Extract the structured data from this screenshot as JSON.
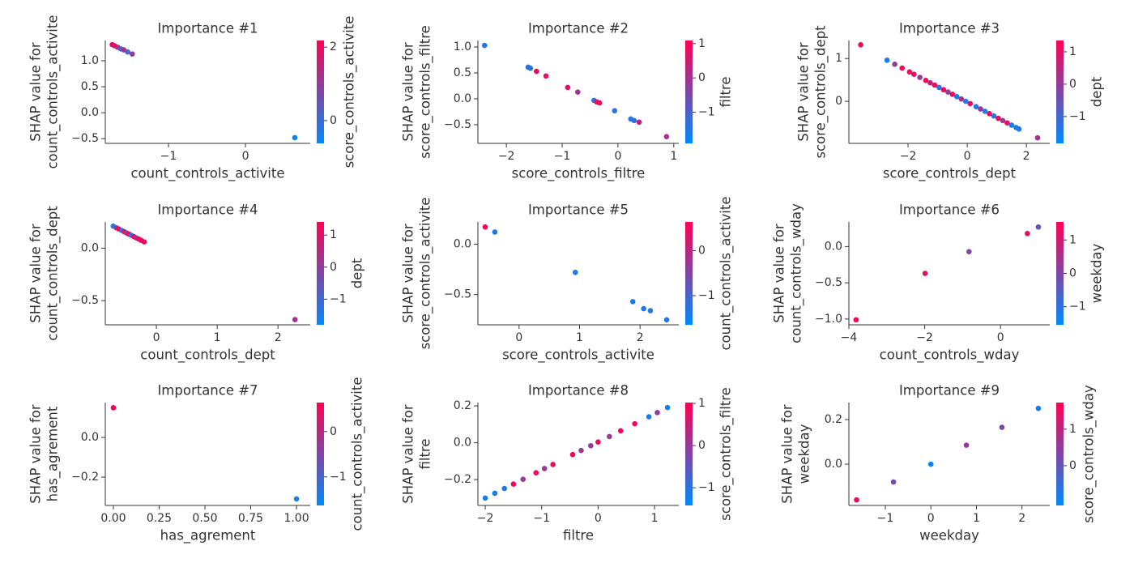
{
  "chart_data": [
    {
      "type": "scatter",
      "title": "Importance #1",
      "xlabel": "count_controls_activite",
      "ylabel": [
        "SHAP value for",
        "count_controls_activite"
      ],
      "colorbar_label": "score_controls_activite",
      "cmap": [
        "#008afb",
        "#ff0052"
      ],
      "xlim": [
        -1.82,
        0.84
      ],
      "xticks": [
        {
          "value": -1,
          "label": "−1"
        },
        0
      ],
      "ylim": [
        -0.59,
        1.39
      ],
      "yticks": [
        {
          "value": -0.5,
          "label": "−0.5"
        },
        {
          "value": 0,
          "label": "0.0"
        },
        0.5,
        {
          "value": 1,
          "label": "1.0"
        }
      ],
      "clim": [
        -0.62,
        2.18
      ],
      "cticks": [
        0,
        2
      ],
      "x": [
        -1.73,
        -1.7,
        -1.66,
        -1.62,
        -1.58,
        -1.53,
        -1.47,
        0.64
      ],
      "values": [
        1.31,
        1.29,
        1.26,
        1.23,
        1.21,
        1.17,
        1.13,
        -0.48
      ],
      "color_values": [
        2.0,
        1.8,
        1.5,
        0.2,
        1.2,
        0.1,
        1.0,
        -0.5
      ]
    },
    {
      "type": "scatter",
      "title": "Importance #2",
      "xlabel": "score_controls_filtre",
      "ylabel": [
        "SHAP value for",
        "score_controls_filtre"
      ],
      "colorbar_label": "filtre",
      "cmap": [
        "#008afb",
        "#ff0052"
      ],
      "xlim": [
        -2.51,
        1.09
      ],
      "xticks": [
        {
          "value": -2,
          "label": "−2"
        },
        {
          "value": -1,
          "label": "−1"
        },
        0,
        1
      ],
      "ylim": [
        -0.86,
        1.125
      ],
      "yticks": [
        {
          "value": -0.5,
          "label": "−0.5"
        },
        {
          "value": 0,
          "label": "0.0"
        },
        0.5,
        {
          "value": 1,
          "label": "1.0"
        }
      ],
      "clim": [
        -1.91,
        1.09
      ],
      "cticks": [
        {
          "value": -1,
          "label": "−1"
        },
        0,
        1
      ],
      "x": [
        -2.39,
        -1.61,
        -1.57,
        -1.46,
        -1.29,
        -0.9,
        -0.72,
        -0.43,
        -0.38,
        -0.33,
        -0.06,
        0.23,
        0.29,
        0.38,
        0.87
      ],
      "values": [
        1.03,
        0.61,
        0.59,
        0.53,
        0.44,
        0.22,
        0.13,
        -0.03,
        -0.06,
        -0.08,
        -0.23,
        -0.39,
        -0.42,
        -0.45,
        -0.73
      ],
      "color_values": [
        -1.5,
        -1.5,
        -1.4,
        0.9,
        0.8,
        0.8,
        0.0,
        -1.5,
        0.9,
        0.8,
        -1.4,
        -1.5,
        -1.3,
        0.3,
        0.1
      ]
    },
    {
      "type": "scatter",
      "title": "Importance #3",
      "xlabel": "score_controls_dept",
      "ylabel": [
        "SHAP value for",
        "score_controls_dept"
      ],
      "colorbar_label": "dept",
      "cmap": [
        "#008afb",
        "#ff0052"
      ],
      "xlim": [
        -4.0,
        2.79
      ],
      "xticks": [
        {
          "value": -2,
          "label": "−2"
        },
        0,
        2
      ],
      "ylim": [
        -0.98,
        1.42
      ],
      "yticks": [
        0,
        1
      ],
      "clim": [
        -1.83,
        1.35
      ],
      "cticks": [
        {
          "value": -1,
          "label": "−1"
        },
        0,
        1
      ],
      "x": [
        -3.6,
        -2.71,
        -2.45,
        -2.2,
        -1.95,
        -1.8,
        -1.6,
        -1.4,
        -1.25,
        -1.1,
        -0.95,
        -0.8,
        -0.65,
        -0.5,
        -0.35,
        -0.2,
        -0.05,
        0.1,
        0.3,
        0.45,
        0.6,
        0.75,
        0.9,
        1.05,
        1.2,
        1.35,
        1.5,
        1.65,
        1.75,
        2.38
      ],
      "values": [
        1.32,
        0.96,
        0.866,
        0.776,
        0.686,
        0.632,
        0.56,
        0.488,
        0.434,
        0.38,
        0.326,
        0.272,
        0.218,
        0.164,
        0.11,
        0.056,
        0.002,
        -0.052,
        -0.124,
        -0.178,
        -0.232,
        -0.286,
        -0.34,
        -0.394,
        -0.448,
        -0.502,
        -0.556,
        -0.61,
        -0.646,
        -0.85
      ],
      "color_values": [
        1.2,
        -1.5,
        0.0,
        1.2,
        1.2,
        1.1,
        0.0,
        1.2,
        0.5,
        1.2,
        -1.4,
        1.1,
        0.0,
        1.2,
        -1.5,
        0.3,
        -1.5,
        1.2,
        -1.4,
        0.0,
        -1.5,
        1.2,
        -1.3,
        1.1,
        0.0,
        1.2,
        -1.5,
        -1.4,
        -1.5,
        0.2
      ]
    },
    {
      "type": "scatter",
      "title": "Importance #4",
      "xlabel": "count_controls_dept",
      "ylabel": [
        "SHAP value for",
        "count_controls_dept"
      ],
      "colorbar_label": "dept",
      "cmap": [
        "#008afb",
        "#ff0052"
      ],
      "xlim": [
        -0.84,
        2.53
      ],
      "xticks": [
        0,
        1,
        2
      ],
      "ylim": [
        -0.73,
        0.25
      ],
      "yticks": [
        {
          "value": -0.5,
          "label": "−0.5"
        },
        {
          "value": 0,
          "label": "0.0"
        }
      ],
      "clim": [
        -1.8,
        1.41
      ],
      "cticks": [
        {
          "value": -1,
          "label": "−1"
        },
        0,
        1
      ],
      "x": [
        -0.71,
        -0.66,
        -0.62,
        -0.57,
        -0.53,
        -0.49,
        -0.45,
        -0.41,
        -0.37,
        -0.33,
        -0.29,
        -0.25,
        -0.2,
        2.28
      ],
      "values": [
        0.21,
        0.195,
        0.184,
        0.169,
        0.157,
        0.145,
        0.134,
        0.122,
        0.11,
        0.098,
        0.087,
        0.075,
        0.06,
        -0.68
      ],
      "color_values": [
        -1.5,
        0.0,
        1.2,
        -1.3,
        1.1,
        0.0,
        1.2,
        -1.4,
        1.2,
        0.2,
        1.1,
        1.2,
        1.0,
        0.3
      ]
    },
    {
      "type": "scatter",
      "title": "Importance #5",
      "xlabel": "score_controls_activite",
      "ylabel": [
        "SHAP value for",
        "score_controls_activite"
      ],
      "colorbar_label": "count_controls_activite",
      "cmap": [
        "#008afb",
        "#ff0052"
      ],
      "xlim": [
        -0.68,
        2.64
      ],
      "xticks": [
        0,
        1,
        2
      ],
      "ylim": [
        -0.8,
        0.22
      ],
      "yticks": [
        {
          "value": -0.5,
          "label": "−0.5"
        },
        {
          "value": 0,
          "label": "0.0"
        }
      ],
      "clim": [
        -1.65,
        0.64
      ],
      "cticks": [
        {
          "value": -1,
          "label": "−1"
        },
        0
      ],
      "x": [
        -0.56,
        -0.4,
        0.93,
        1.88,
        2.06,
        2.17,
        2.44
      ],
      "values": [
        0.17,
        0.12,
        -0.28,
        -0.57,
        -0.64,
        -0.66,
        -0.75
      ],
      "color_values": [
        0.6,
        -1.4,
        -1.4,
        -1.4,
        -1.4,
        -1.4,
        -1.4
      ]
    },
    {
      "type": "scatter",
      "title": "Importance #6",
      "xlabel": "count_controls_wday",
      "ylabel": [
        "SHAP value for",
        "count_controls_wday"
      ],
      "colorbar_label": "weekday",
      "cmap": [
        "#008afb",
        "#ff0052"
      ],
      "xlim": [
        -4.0,
        1.3
      ],
      "xticks": [
        {
          "value": -4,
          "label": "−4"
        },
        {
          "value": -2,
          "label": "−2"
        },
        0
      ],
      "ylim": [
        -1.08,
        0.34
      ],
      "yticks": [
        {
          "value": -1,
          "label": "−1.0"
        },
        {
          "value": -0.5,
          "label": "−0.5"
        },
        {
          "value": 0,
          "label": "0.0"
        }
      ],
      "clim": [
        -1.54,
        1.54
      ],
      "cticks": [
        {
          "value": -1,
          "label": "−1"
        },
        0,
        1
      ],
      "x": [
        -3.81,
        -1.99,
        -0.83,
        0.71,
        1.0
      ],
      "values": [
        -1.01,
        -0.37,
        -0.07,
        0.18,
        0.27
      ],
      "color_values": [
        1.5,
        1.2,
        0.0,
        1.2,
        -0.3
      ]
    },
    {
      "type": "scatter",
      "title": "Importance #7",
      "xlabel": "has_agrement",
      "ylabel": [
        "SHAP value for",
        "has_agrement"
      ],
      "colorbar_label": "count_controls_activite",
      "cmap": [
        "#008afb",
        "#ff0052"
      ],
      "xlim": [
        -0.044,
        1.075
      ],
      "xticks": [
        {
          "value": 0,
          "label": "0.00"
        },
        0.25,
        {
          "value": 0.5,
          "label": "0.50"
        },
        0.75,
        {
          "value": 1,
          "label": "1.00"
        }
      ],
      "ylim": [
        -0.343,
        0.176
      ],
      "yticks": [
        {
          "value": -0.2,
          "label": "−0.2"
        },
        {
          "value": 0,
          "label": "0.0"
        }
      ],
      "clim": [
        -1.63,
        0.64
      ],
      "cticks": [
        {
          "value": -1,
          "label": "−1"
        },
        0
      ],
      "x": [
        0,
        1
      ],
      "values": [
        0.15,
        -0.31
      ],
      "color_values": [
        0.6,
        -1.4
      ]
    },
    {
      "type": "scatter",
      "title": "Importance #8",
      "xlabel": "filtre",
      "ylabel": [
        "SHAP value for",
        "filtre"
      ],
      "colorbar_label": "score_controls_filtre",
      "cmap": [
        "#008afb",
        "#ff0052"
      ],
      "xlim": [
        -2.13,
        1.43
      ],
      "xticks": [
        {
          "value": -2,
          "label": "−2"
        },
        {
          "value": -1,
          "label": "−1"
        },
        0,
        1
      ],
      "ylim": [
        -0.34,
        0.218
      ],
      "yticks": [
        {
          "value": -0.2,
          "label": "−0.2"
        },
        {
          "value": 0,
          "label": "0.0"
        },
        0.2
      ],
      "clim": [
        -1.42,
        1.02
      ],
      "cticks": [
        {
          "value": -1,
          "label": "−1"
        },
        0,
        1
      ],
      "x": [
        -2.0,
        -1.83,
        -1.66,
        -1.5,
        -1.33,
        -1.1,
        -0.95,
        -0.8,
        -0.45,
        -0.3,
        -0.13,
        0.0,
        0.2,
        0.4,
        0.65,
        0.9,
        1.05,
        1.23
      ],
      "values": [
        -0.3,
        -0.274,
        -0.248,
        -0.224,
        -0.198,
        -0.163,
        -0.14,
        -0.118,
        -0.064,
        -0.042,
        -0.016,
        0.004,
        0.034,
        0.065,
        0.103,
        0.141,
        0.164,
        0.191
      ],
      "color_values": [
        -1.2,
        -1.2,
        -1.1,
        0.9,
        0.0,
        0.9,
        0.0,
        0.9,
        0.9,
        0.0,
        0.0,
        0.9,
        0.0,
        0.9,
        0.9,
        -1.2,
        0.0,
        -1.2
      ]
    },
    {
      "type": "scatter",
      "title": "Importance #9",
      "xlabel": "weekday",
      "ylabel": [
        "SHAP value for",
        "weekday"
      ],
      "colorbar_label": "score_controls_wday",
      "cmap": [
        "#008afb",
        "#ff0052"
      ],
      "xlim": [
        -1.8,
        2.61
      ],
      "xticks": [
        {
          "value": -1,
          "label": "−1"
        },
        0,
        1,
        2
      ],
      "ylim": [
        -0.185,
        0.276
      ],
      "yticks": [
        {
          "value": 0,
          "label": "0.0"
        },
        0.2
      ],
      "clim": [
        -1.09,
        1.73
      ],
      "cticks": [
        0,
        1
      ],
      "x": [
        -1.63,
        -0.82,
        0,
        0.78,
        1.56,
        2.36
      ],
      "values": [
        -0.16,
        -0.08,
        0.0,
        0.085,
        0.165,
        0.25
      ],
      "color_values": [
        1.5,
        0.2,
        -1.0,
        0.5,
        0.3,
        -0.9
      ]
    }
  ]
}
